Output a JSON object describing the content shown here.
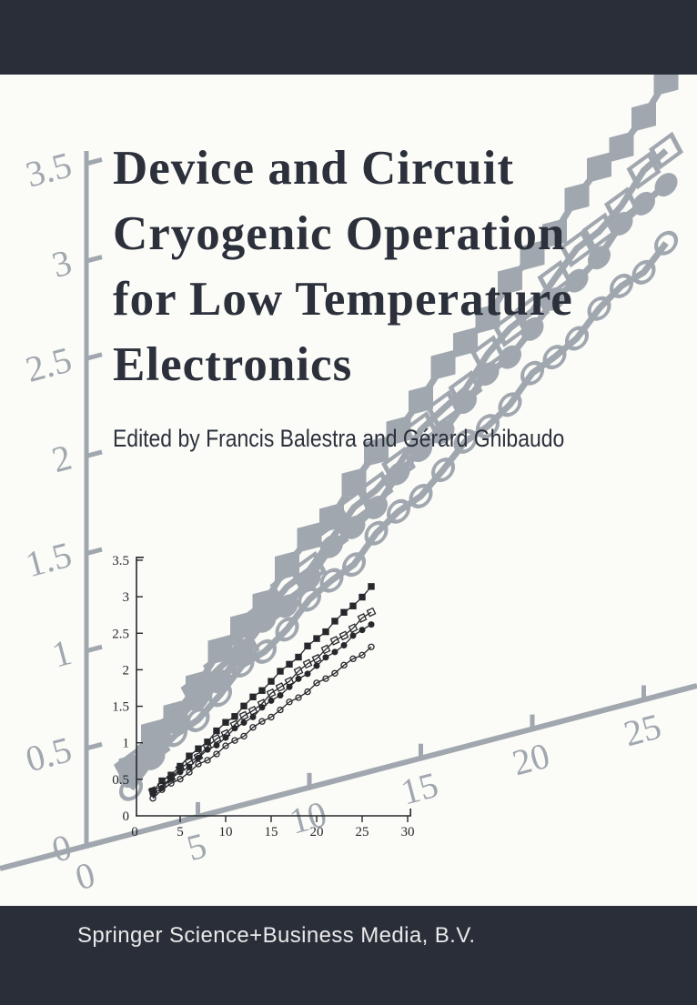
{
  "cover": {
    "title_lines": [
      "Device and Circuit",
      "Cryogenic Operation",
      "for Low Temperature",
      "Electronics"
    ],
    "edited_by": "Edited by Francis Balestra and Gérard Ghibaudo",
    "publisher": "Springer Science+Business Media, B.V."
  },
  "colors": {
    "bar_background": "#2a2e38",
    "page_background": "#fbfbf8",
    "title_text": "#2b303b",
    "edited_by_text": "#2b303b",
    "publisher_text": "#e9e9e9",
    "chart_gray": "#a0a7ae",
    "chart_black": "#26282c"
  },
  "chart_data": {
    "type": "line",
    "title": "",
    "xlabel": "",
    "ylabel": "",
    "xlim": [
      0,
      30
    ],
    "ylim": [
      0,
      3.5
    ],
    "grid": false,
    "legend": "none",
    "inset_x_tick_labels": [
      0,
      5,
      10,
      15,
      20,
      25,
      30
    ],
    "inset_y_tick_labels": [
      0,
      0.5,
      1,
      1.5,
      2,
      2.5,
      3,
      3.5
    ],
    "background_x_tick_labels": [
      0,
      5,
      10,
      15,
      20,
      25
    ],
    "background_y_tick_labels": [
      3.5,
      3,
      2.5,
      2,
      1.5,
      1,
      0.5,
      0
    ],
    "x": [
      2,
      3,
      4,
      5,
      6,
      7,
      8,
      9,
      10,
      11,
      12,
      13,
      14,
      15,
      16,
      17,
      18,
      19,
      20,
      21,
      22,
      23,
      24,
      25,
      26
    ],
    "series": [
      {
        "name": "series-1-filled-square",
        "marker": "filled-square",
        "values": [
          0.34,
          0.46,
          0.57,
          0.69,
          0.8,
          0.92,
          1.03,
          1.15,
          1.27,
          1.38,
          1.5,
          1.61,
          1.73,
          1.85,
          1.96,
          2.08,
          2.19,
          2.31,
          2.42,
          2.54,
          2.66,
          2.77,
          2.89,
          3.0,
          3.12
        ]
      },
      {
        "name": "series-2-open-square",
        "marker": "open-square",
        "values": [
          0.32,
          0.42,
          0.53,
          0.63,
          0.73,
          0.83,
          0.94,
          1.04,
          1.14,
          1.25,
          1.35,
          1.45,
          1.55,
          1.66,
          1.76,
          1.86,
          1.97,
          2.07,
          2.17,
          2.28,
          2.38,
          2.48,
          2.58,
          2.69,
          2.79
        ]
      },
      {
        "name": "series-3-filled-circle",
        "marker": "filled-circle",
        "values": [
          0.3,
          0.4,
          0.5,
          0.59,
          0.69,
          0.79,
          0.89,
          0.98,
          1.08,
          1.18,
          1.28,
          1.37,
          1.47,
          1.57,
          1.67,
          1.76,
          1.86,
          1.96,
          2.06,
          2.15,
          2.25,
          2.35,
          2.45,
          2.54,
          2.64
        ]
      },
      {
        "name": "series-4-open-circle",
        "marker": "open-circle",
        "values": [
          0.26,
          0.35,
          0.43,
          0.52,
          0.6,
          0.69,
          0.77,
          0.86,
          0.94,
          1.03,
          1.11,
          1.2,
          1.28,
          1.37,
          1.45,
          1.54,
          1.63,
          1.71,
          1.8,
          1.88,
          1.97,
          2.05,
          2.14,
          2.22,
          2.31
        ]
      }
    ]
  }
}
